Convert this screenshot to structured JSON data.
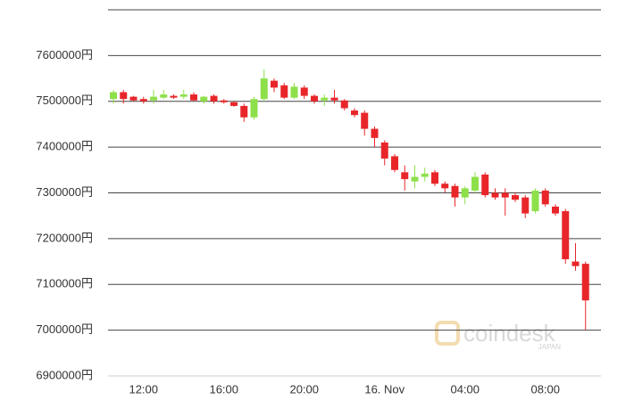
{
  "chart_data": {
    "type": "candlestick",
    "categories": [
      null,
      null,
      null,
      "12:00",
      null,
      null,
      null,
      null,
      null,
      null,
      null,
      "16:00",
      null,
      null,
      null,
      null,
      null,
      null,
      null,
      "20:00",
      null,
      null,
      null,
      null,
      null,
      null,
      null,
      "16. Nov",
      null,
      null,
      null,
      null,
      null,
      null,
      null,
      "04:00",
      null,
      null,
      null,
      null,
      null,
      null,
      null,
      "08:00",
      null,
      null,
      null,
      null
    ],
    "open": [
      7505000,
      7520000,
      7510000,
      7505000,
      7502000,
      7508000,
      7512000,
      7510000,
      7515000,
      7500000,
      7512000,
      7502000,
      7498000,
      7490000,
      7465000,
      7505000,
      7545000,
      7535000,
      7508000,
      7530000,
      7512000,
      7502000,
      7508000,
      7502000,
      7480000,
      7475000,
      7440000,
      7410000,
      7380000,
      7345000,
      7325000,
      7335000,
      7345000,
      7320000,
      7315000,
      7290000,
      7305000,
      7340000,
      7300000,
      7300000,
      7295000,
      7290000,
      7260000,
      7305000,
      7270000,
      7260000,
      7150000,
      7145000
    ],
    "high": [
      7525000,
      7525000,
      7512000,
      7510000,
      7525000,
      7525000,
      7515000,
      7525000,
      7520000,
      7512000,
      7515000,
      7505000,
      7500000,
      7495000,
      7510000,
      7570000,
      7550000,
      7540000,
      7540000,
      7535000,
      7515000,
      7515000,
      7525000,
      7505000,
      7485000,
      7480000,
      7445000,
      7415000,
      7385000,
      7360000,
      7360000,
      7355000,
      7350000,
      7325000,
      7320000,
      7315000,
      7345000,
      7345000,
      7310000,
      7310000,
      7300000,
      7295000,
      7310000,
      7310000,
      7275000,
      7265000,
      7190000,
      7150000
    ],
    "low": [
      7495000,
      7495000,
      7500000,
      7495000,
      7495000,
      7505000,
      7505000,
      7505000,
      7500000,
      7495000,
      7495000,
      7495000,
      7488000,
      7455000,
      7460000,
      7500000,
      7520000,
      7505000,
      7505000,
      7505000,
      7495000,
      7490000,
      7495000,
      7480000,
      7465000,
      7425000,
      7400000,
      7360000,
      7345000,
      7305000,
      7310000,
      7325000,
      7315000,
      7300000,
      7270000,
      7275000,
      7300000,
      7290000,
      7285000,
      7250000,
      7280000,
      7245000,
      7255000,
      7270000,
      7250000,
      7145000,
      7130000,
      7000000
    ],
    "close": [
      7520000,
      7505000,
      7502000,
      7500000,
      7510000,
      7515000,
      7508000,
      7515000,
      7502000,
      7510000,
      7500000,
      7498000,
      7490000,
      7465000,
      7505000,
      7550000,
      7530000,
      7508000,
      7532000,
      7512000,
      7500000,
      7508000,
      7502000,
      7485000,
      7470000,
      7440000,
      7420000,
      7375000,
      7350000,
      7330000,
      7335000,
      7342000,
      7320000,
      7310000,
      7290000,
      7310000,
      7335000,
      7295000,
      7290000,
      7290000,
      7285000,
      7255000,
      7305000,
      7275000,
      7255000,
      7155000,
      7140000,
      7065000
    ],
    "up_color": "#8ee04a",
    "down_color": "#e8262a",
    "ylim": [
      6900000,
      7700000
    ],
    "yticks": [
      {
        "value": 6900000,
        "label": "6900000円"
      },
      {
        "value": 7000000,
        "label": "7000000円"
      },
      {
        "value": 7100000,
        "label": "7100000円"
      },
      {
        "value": 7200000,
        "label": "7200000円"
      },
      {
        "value": 7300000,
        "label": "7300000円"
      },
      {
        "value": 7400000,
        "label": "7400000円"
      },
      {
        "value": 7500000,
        "label": "7500000円"
      },
      {
        "value": 7600000,
        "label": "7600000円"
      }
    ],
    "grid": true,
    "watermark": {
      "text": "coindesk",
      "subtext": "JAPAN"
    }
  }
}
